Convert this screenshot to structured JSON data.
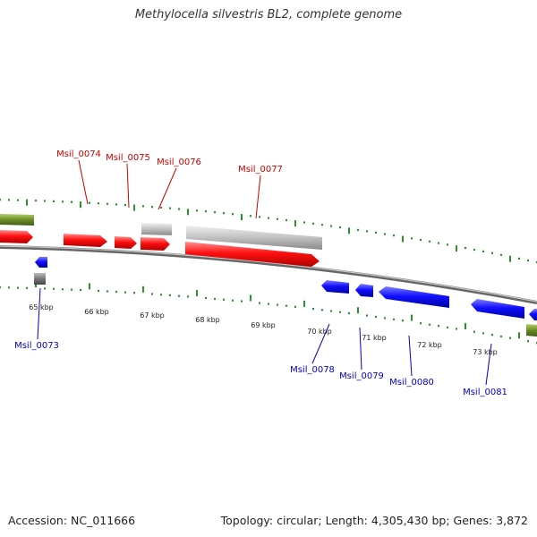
{
  "title": "Methylocella silvestris BL2, complete genome",
  "footer": {
    "accession": "Accession: NC_011666",
    "summary": "Topology: circular; Length: 4,305,430 bp; Genes: 3,872"
  },
  "colors": {
    "forward_gene": "#ff0000",
    "reverse_gene": "#0000ff",
    "pseudo_gene": "#bbbbbb",
    "rna_gene": "#6b8e23",
    "tick": "#118811",
    "backbone": "#888888",
    "forward_label": "#cc0000",
    "reverse_label": "#0000cc"
  },
  "scale_labels": [
    "65 kbp",
    "66 kbp",
    "67 kbp",
    "68 kbp",
    "69 kbp",
    "70 kbp",
    "71 kbp",
    "72 kbp",
    "73 kbp"
  ],
  "forward_gene_labels": [
    "Msil_0074",
    "Msil_0075",
    "Msil_0076",
    "Msil_0077"
  ],
  "reverse_gene_labels": [
    "Msil_0073",
    "Msil_0078",
    "Msil_0079",
    "Msil_0080",
    "Msil_0081"
  ]
}
